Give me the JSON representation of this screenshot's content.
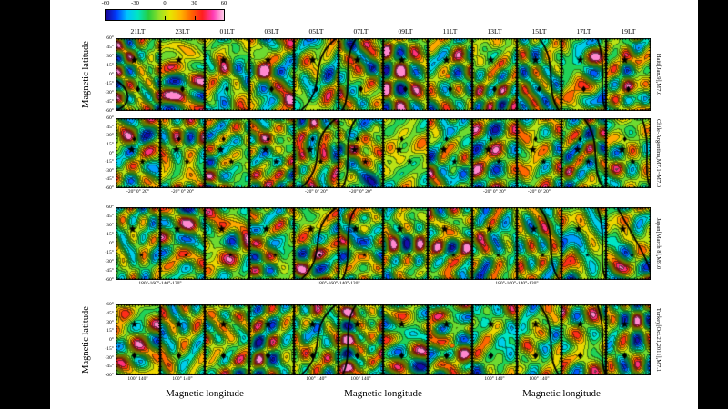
{
  "figure": {
    "colorbar": {
      "tick_labels": [
        "-60",
        "-30",
        "0",
        "30",
        "60"
      ]
    },
    "column_headers": [
      "21LT",
      "23LT",
      "01LT",
      "03LT",
      "05LT",
      "07LT",
      "09LT",
      "11LT",
      "13LT",
      "15LT",
      "17LT",
      "19LT"
    ],
    "y_axis_title": "Magnetic latitude",
    "x_axis_title": "Magnetic longitude",
    "y_tick_labels": [
      "60°",
      "45°",
      "30°",
      "15°",
      "0°",
      "-15°",
      "-30°",
      "-45°",
      "-60°"
    ],
    "rows": [
      {
        "label": "Haiti[Jan.9],M7.0",
        "xlabels": []
      },
      {
        "label": "Chile-Argentina,M7.1~M7.0",
        "xlabels": [
          {
            "text": "-20° 0° 20°",
            "col": 0,
            "span": 1
          },
          {
            "text": "-20° 0° 20°",
            "col": 1,
            "span": 1
          },
          {
            "text": "-20° 0° 20°",
            "col": 4,
            "span": 1
          },
          {
            "text": "-20° 0° 20°",
            "col": 5,
            "span": 1
          },
          {
            "text": "-20° 0° 20°",
            "col": 8,
            "span": 1
          },
          {
            "text": "-20° 0° 20°",
            "col": 9,
            "span": 1
          }
        ]
      },
      {
        "label": "Japan[March 8],M9.0",
        "xlabels": [
          {
            "text": "180°-160°-140°-120°",
            "col": 0,
            "span": 2
          },
          {
            "text": "180°-160°-140°-120°",
            "col": 4,
            "span": 2
          },
          {
            "text": "180°-160°-140°-120°",
            "col": 8,
            "span": 2
          }
        ]
      },
      {
        "label": "Turkey[Oct.21,2011],M7.1",
        "xlabels": [
          {
            "text": "100° 140°",
            "col": 0,
            "span": 1
          },
          {
            "text": "100° 140°",
            "col": 1,
            "span": 1
          },
          {
            "text": "100° 140°",
            "col": 4,
            "span": 1
          },
          {
            "text": "100° 140°",
            "col": 5,
            "span": 1
          },
          {
            "text": "100° 140°",
            "col": 8,
            "span": 1
          },
          {
            "text": "100° 140°",
            "col": 9,
            "span": 1
          }
        ]
      }
    ],
    "markers": [
      [
        {
          "g": "star",
          "x": 0.42,
          "y": 0.3,
          "s": 4.5
        },
        {
          "g": "diamond",
          "x": 0.5,
          "y": 0.7,
          "s": 3.5
        }
      ],
      [
        {
          "g": "diamond",
          "x": 0.42,
          "y": 0.3,
          "s": 3.0
        },
        {
          "g": "star",
          "x": 0.36,
          "y": 0.45,
          "s": 4.5
        },
        {
          "g": "star",
          "x": 0.6,
          "y": 0.62,
          "s": 3.5
        }
      ],
      [
        {
          "g": "star",
          "x": 0.38,
          "y": 0.3,
          "s": 4.5
        },
        {
          "g": "star",
          "x": 0.58,
          "y": 0.66,
          "s": 2.5
        }
      ],
      [
        {
          "g": "star",
          "x": 0.42,
          "y": 0.28,
          "s": 4.5
        },
        {
          "g": "diamond",
          "x": 0.42,
          "y": 0.72,
          "s": 4.0
        }
      ]
    ],
    "extra_markers": [
      {
        "r": 0,
        "c": 7,
        "x": 0.45,
        "y": 0.52
      },
      {
        "r": 0,
        "c": 8,
        "x": 0.4,
        "y": 0.5
      },
      {
        "r": 2,
        "c": 7,
        "x": 0.5,
        "y": 0.74
      },
      {
        "r": 3,
        "c": 7,
        "x": 0.55,
        "y": 0.58
      }
    ],
    "curves": [
      {
        "r": 0,
        "c": 0,
        "p": "bl"
      },
      {
        "r": 0,
        "c": 4,
        "p": "s1"
      },
      {
        "r": 0,
        "c": 5,
        "p": "s2"
      },
      {
        "r": 0,
        "c": 9,
        "p": "r1"
      },
      {
        "r": 0,
        "c": 10,
        "p": "r2"
      },
      {
        "r": 1,
        "c": 4,
        "p": "s1"
      },
      {
        "r": 1,
        "c": 5,
        "p": "s2"
      },
      {
        "r": 1,
        "c": 10,
        "p": "r1"
      },
      {
        "r": 1,
        "c": 11,
        "p": "r2"
      },
      {
        "r": 2,
        "c": 4,
        "p": "s1"
      },
      {
        "r": 2,
        "c": 5,
        "p": "s2"
      },
      {
        "r": 2,
        "c": 9,
        "p": "r1"
      },
      {
        "r": 2,
        "c": 10,
        "p": "r2"
      },
      {
        "r": 2,
        "c": 11,
        "p": "r3"
      },
      {
        "r": 3,
        "c": 4,
        "p": "s1"
      },
      {
        "r": 3,
        "c": 5,
        "p": "s2"
      },
      {
        "r": 3,
        "c": 9,
        "p": "r1"
      },
      {
        "r": 3,
        "c": 10,
        "p": "r2"
      }
    ]
  },
  "chart_data": {
    "type": "heatmap",
    "description": "4x12 grid of filled contour maps (magnetic latitude vs magnetic longitude), one row per earthquake event, one column per local time; black stars/diamonds mark epicenters; thick black curves cross some panels",
    "colorbar": {
      "min": -60,
      "max": 60,
      "tick_values": [
        -60,
        -30,
        0,
        30,
        60
      ],
      "colors": [
        "#1a0090",
        "#003cff",
        "#00c3ff",
        "#00e6c3",
        "#28cd3c",
        "#96e128",
        "#e6e600",
        "#ffb400",
        "#ff6400",
        "#ff1e1e",
        "#ff3cb4",
        "#ffcde9"
      ]
    },
    "columns_local_time": [
      "21LT",
      "23LT",
      "01LT",
      "03LT",
      "05LT",
      "07LT",
      "09LT",
      "11LT",
      "13LT",
      "15LT",
      "17LT",
      "19LT"
    ],
    "rows_events": [
      "Haiti[Jan.9],M7.0",
      "Chile-Argentina,M7.1~M7.0",
      "Japan[March 8],M9.0",
      "Turkey[Oct.21,2011],M7.1"
    ],
    "xlabel": "Magnetic longitude",
    "ylabel": "Magnetic latitude",
    "y_ticks": [
      "60°",
      "45°",
      "30°",
      "15°",
      "0°",
      "-15°",
      "-30°",
      "-45°",
      "-60°"
    ],
    "x_ticks_by_row": {
      "Chile-Argentina,M7.1~M7.0": [
        "-20°",
        "0°",
        "20°"
      ],
      "Japan[March 8],M9.0": [
        "180°",
        "-160°",
        "-140°",
        "-120°"
      ],
      "Turkey[Oct.21,2011],M7.1": [
        "100°",
        "140°"
      ]
    }
  }
}
